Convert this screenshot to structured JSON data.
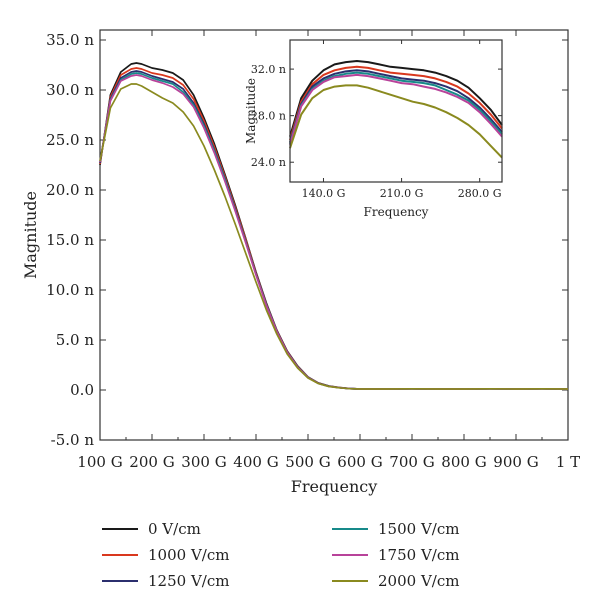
{
  "chart_data": [
    {
      "type": "line",
      "xlabel": "Frequency",
      "ylabel": "Magnitude",
      "xlim": [
        100,
        1000
      ],
      "ylim": [
        -5.0,
        36.0
      ],
      "x_ticks": [
        100,
        200,
        300,
        400,
        500,
        600,
        700,
        800,
        900,
        1000
      ],
      "x_tick_labels": [
        "100 G",
        "200 G",
        "300 G",
        "400 G",
        "500 G",
        "600 G",
        "700 G",
        "800 G",
        "900 G",
        "1 T"
      ],
      "y_ticks": [
        -5,
        0,
        5,
        10,
        15,
        20,
        25,
        30,
        35
      ],
      "y_tick_labels": [
        "-5.0 n",
        "0.0",
        "5.0 n",
        "10.0 n",
        "15.0 n",
        "20.0 n",
        "25.0 n",
        "30.0 n",
        "35.0 n"
      ],
      "x": [
        100,
        120,
        140,
        160,
        170,
        180,
        200,
        220,
        240,
        260,
        280,
        300,
        320,
        340,
        360,
        380,
        400,
        420,
        440,
        460,
        480,
        500,
        520,
        540,
        560,
        580,
        600,
        650,
        700,
        750,
        800,
        850,
        900,
        950,
        1000
      ],
      "series": [
        {
          "name": "0 V/cm",
          "color": "#1a1a1a",
          "values": [
            22.5,
            29.5,
            31.8,
            32.6,
            32.7,
            32.6,
            32.2,
            32.0,
            31.7,
            31.0,
            29.5,
            27.2,
            24.6,
            21.6,
            18.5,
            15.2,
            11.8,
            8.7,
            6.0,
            3.9,
            2.4,
            1.3,
            0.7,
            0.4,
            0.25,
            0.15,
            0.1,
            0.1,
            0.12,
            0.1,
            0.1,
            0.12,
            0.1,
            0.12,
            0.1
          ]
        },
        {
          "name": "1000 V/cm",
          "color": "#d9381e",
          "values": [
            22.6,
            29.3,
            31.5,
            32.1,
            32.2,
            32.1,
            31.7,
            31.5,
            31.2,
            30.5,
            29.1,
            26.9,
            24.3,
            21.4,
            18.3,
            15.1,
            11.7,
            8.6,
            5.95,
            3.85,
            2.35,
            1.28,
            0.68,
            0.38,
            0.24,
            0.14,
            0.1,
            0.1,
            0.12,
            0.1,
            0.1,
            0.12,
            0.1,
            0.12,
            0.1
          ]
        },
        {
          "name": "1250 V/cm",
          "color": "#2b2f6e",
          "values": [
            22.7,
            29.1,
            31.2,
            31.8,
            31.9,
            31.8,
            31.4,
            31.1,
            30.8,
            30.1,
            28.7,
            26.6,
            24.0,
            21.2,
            18.1,
            14.9,
            11.6,
            8.55,
            5.9,
            3.8,
            2.32,
            1.26,
            0.67,
            0.37,
            0.23,
            0.14,
            0.1,
            0.1,
            0.12,
            0.1,
            0.1,
            0.12,
            0.1,
            0.12,
            0.1
          ]
        },
        {
          "name": "1500 V/cm",
          "color": "#178a8a",
          "values": [
            22.8,
            29.0,
            31.0,
            31.6,
            31.7,
            31.6,
            31.2,
            30.9,
            30.6,
            29.8,
            28.5,
            26.4,
            23.9,
            21.1,
            18.0,
            14.85,
            11.55,
            8.5,
            5.88,
            3.78,
            2.3,
            1.25,
            0.66,
            0.37,
            0.23,
            0.14,
            0.1,
            0.1,
            0.12,
            0.1,
            0.1,
            0.12,
            0.1,
            0.12,
            0.1
          ]
        },
        {
          "name": "1750 V/cm",
          "color": "#b8439a",
          "values": [
            22.8,
            28.9,
            30.9,
            31.4,
            31.5,
            31.4,
            31.0,
            30.7,
            30.3,
            29.6,
            28.3,
            26.2,
            23.7,
            20.9,
            17.9,
            14.75,
            11.5,
            8.45,
            5.85,
            3.76,
            2.28,
            1.24,
            0.66,
            0.36,
            0.23,
            0.14,
            0.1,
            0.1,
            0.12,
            0.1,
            0.1,
            0.12,
            0.1,
            0.12,
            0.1
          ]
        },
        {
          "name": "2000 V/cm",
          "color": "#8a8a1f",
          "values": [
            22.9,
            28.2,
            30.1,
            30.6,
            30.6,
            30.4,
            29.8,
            29.2,
            28.7,
            27.8,
            26.4,
            24.4,
            22.0,
            19.4,
            16.6,
            13.7,
            10.8,
            8.0,
            5.6,
            3.6,
            2.2,
            1.2,
            0.64,
            0.35,
            0.22,
            0.13,
            0.1,
            0.1,
            0.12,
            0.1,
            0.1,
            0.12,
            0.1,
            0.12,
            0.1
          ]
        }
      ],
      "legend": {
        "placement": "bottom",
        "columns": 2
      }
    },
    {
      "type": "line",
      "xlabel": "Frequency",
      "ylabel": "Magnitude",
      "xlim": [
        110,
        300
      ],
      "ylim": [
        22.3,
        34.5
      ],
      "x_ticks": [
        140,
        210,
        280
      ],
      "x_tick_labels": [
        "140.0 G",
        "210.0 G",
        "280.0 G"
      ],
      "y_ticks": [
        24,
        28,
        32
      ],
      "y_tick_labels": [
        "24.0 n",
        "28.0 n",
        "32.0 n"
      ],
      "x": [
        110,
        120,
        130,
        140,
        150,
        160,
        170,
        180,
        190,
        200,
        210,
        220,
        230,
        240,
        250,
        260,
        270,
        280,
        290,
        300
      ],
      "series": [
        {
          "name": "0 V/cm",
          "color": "#1a1a1a",
          "values": [
            26.2,
            29.5,
            31.0,
            31.9,
            32.4,
            32.6,
            32.7,
            32.6,
            32.4,
            32.2,
            32.1,
            32.0,
            31.9,
            31.7,
            31.4,
            31.0,
            30.4,
            29.5,
            28.5,
            27.2
          ]
        },
        {
          "name": "1000 V/cm",
          "color": "#d9381e",
          "values": [
            25.9,
            29.2,
            30.7,
            31.5,
            31.9,
            32.1,
            32.2,
            32.1,
            31.9,
            31.7,
            31.6,
            31.5,
            31.4,
            31.2,
            30.9,
            30.5,
            29.9,
            29.1,
            28.1,
            26.9
          ]
        },
        {
          "name": "1250 V/cm",
          "color": "#2b2f6e",
          "values": [
            25.7,
            29.0,
            30.5,
            31.2,
            31.6,
            31.8,
            31.9,
            31.8,
            31.6,
            31.4,
            31.2,
            31.1,
            31.0,
            30.8,
            30.5,
            30.1,
            29.5,
            28.7,
            27.7,
            26.6
          ]
        },
        {
          "name": "1500 V/cm",
          "color": "#178a8a",
          "values": [
            25.6,
            28.9,
            30.3,
            31.0,
            31.4,
            31.6,
            31.7,
            31.6,
            31.4,
            31.2,
            31.0,
            30.9,
            30.8,
            30.6,
            30.2,
            29.8,
            29.3,
            28.5,
            27.5,
            26.4
          ]
        },
        {
          "name": "1750 V/cm",
          "color": "#b8439a",
          "values": [
            25.5,
            28.8,
            30.2,
            30.9,
            31.3,
            31.4,
            31.5,
            31.4,
            31.2,
            31.0,
            30.8,
            30.7,
            30.5,
            30.3,
            30.0,
            29.6,
            29.1,
            28.3,
            27.3,
            26.2
          ]
        },
        {
          "name": "2000 V/cm",
          "color": "#8a8a1f",
          "values": [
            25.2,
            28.1,
            29.5,
            30.2,
            30.5,
            30.6,
            30.6,
            30.4,
            30.1,
            29.8,
            29.5,
            29.2,
            29.0,
            28.7,
            28.3,
            27.8,
            27.2,
            26.4,
            25.4,
            24.4
          ]
        }
      ]
    }
  ]
}
